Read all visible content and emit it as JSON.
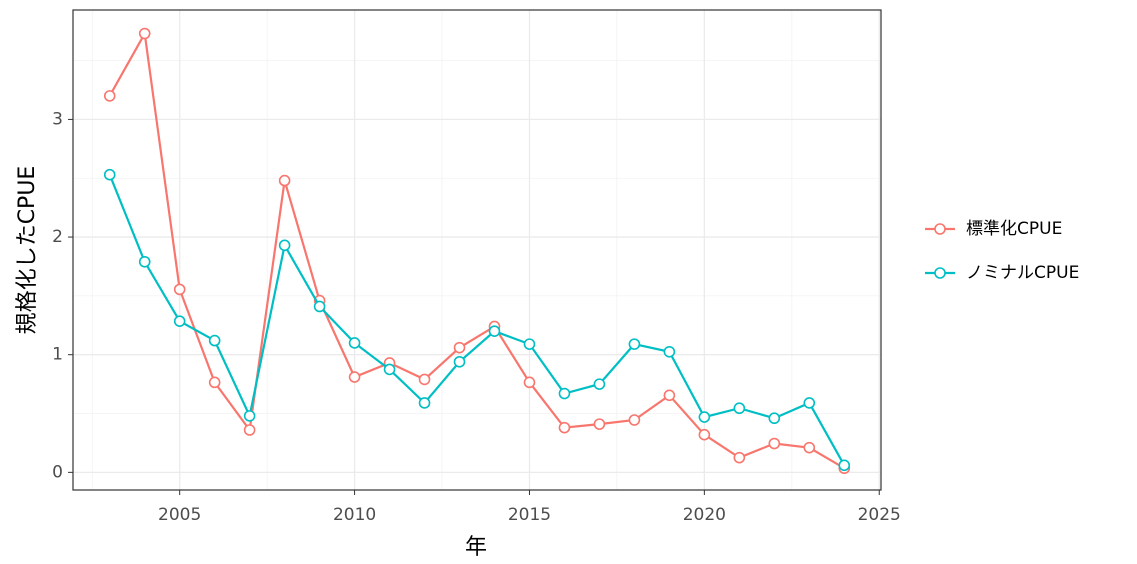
{
  "chart_data": {
    "type": "line",
    "x_label": "年",
    "y_label": "規格化したCPUE",
    "x": [
      2003,
      2004,
      2005,
      2006,
      2007,
      2008,
      2009,
      2010,
      2011,
      2012,
      2013,
      2014,
      2015,
      2016,
      2017,
      2018,
      2019,
      2020,
      2021,
      2022,
      2023,
      2024
    ],
    "series": [
      {
        "name": "標準化CPUE",
        "color": "#F8766D",
        "values": [
          3.2,
          3.73,
          1.555,
          0.765,
          0.36,
          2.48,
          1.46,
          0.81,
          0.93,
          0.79,
          1.06,
          1.24,
          0.765,
          0.38,
          0.41,
          0.445,
          0.655,
          0.32,
          0.125,
          0.245,
          0.21,
          0.035
        ]
      },
      {
        "name": "ノミナルCPUE",
        "color": "#00BFC4",
        "values": [
          2.53,
          1.79,
          1.285,
          1.12,
          0.48,
          1.93,
          1.41,
          1.1,
          0.875,
          0.59,
          0.94,
          1.2,
          1.09,
          0.67,
          0.75,
          1.09,
          1.025,
          0.47,
          0.545,
          0.46,
          0.59,
          0.06
        ]
      }
    ],
    "xlim": [
      2001.95,
      2025.05
    ],
    "xticks": [
      2005,
      2010,
      2015,
      2020,
      2025
    ],
    "xminorticks": [
      2002.5,
      2007.5,
      2012.5,
      2017.5,
      2022.5
    ],
    "ylim": [
      -0.15,
      3.93
    ],
    "yticks": [
      0,
      1,
      2,
      3
    ],
    "yminorticks": [
      0.5,
      1.5,
      2.5,
      3.5
    ],
    "grid": true,
    "legend": "right"
  }
}
